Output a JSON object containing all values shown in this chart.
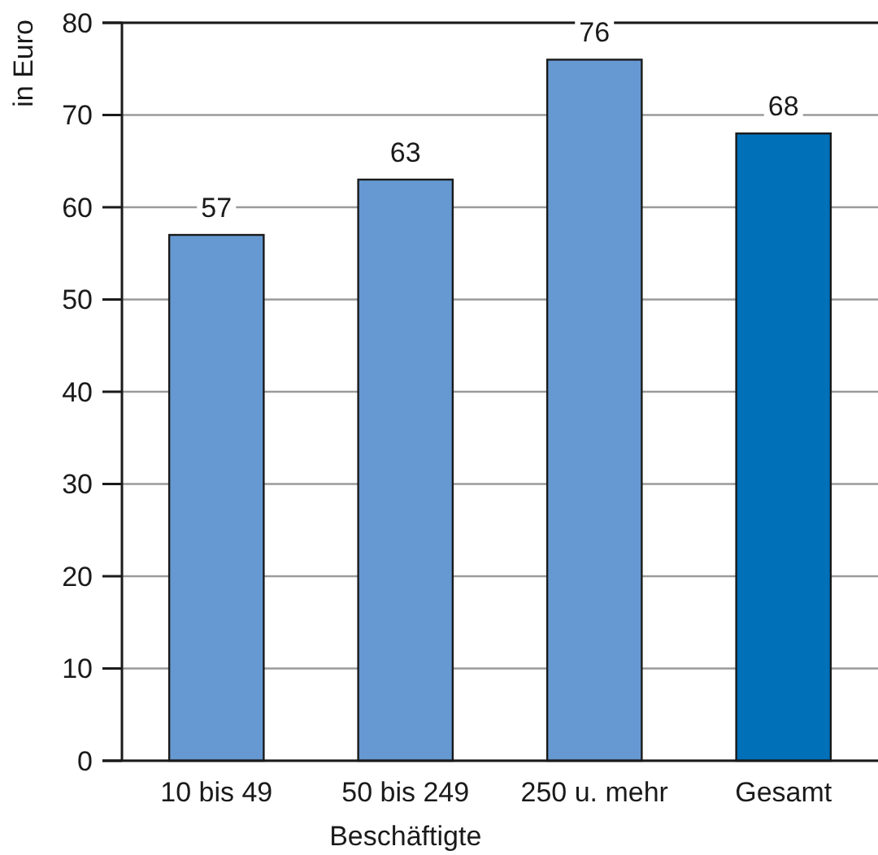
{
  "chart_data": {
    "type": "bar",
    "categories": [
      "10 bis 49",
      "50 bis 249",
      "250 u. mehr",
      "Gesamt"
    ],
    "values": [
      57,
      63,
      76,
      68
    ],
    "colors": [
      "#6699d2",
      "#6699d2",
      "#6699d2",
      "#0070b8"
    ],
    "xlabel": "Beschäftigte",
    "ylabel": "in Euro",
    "ylim": [
      0,
      80
    ],
    "yticks": [
      0,
      10,
      20,
      30,
      40,
      50,
      60,
      70,
      80
    ],
    "grid": "y",
    "data_labels": true
  }
}
